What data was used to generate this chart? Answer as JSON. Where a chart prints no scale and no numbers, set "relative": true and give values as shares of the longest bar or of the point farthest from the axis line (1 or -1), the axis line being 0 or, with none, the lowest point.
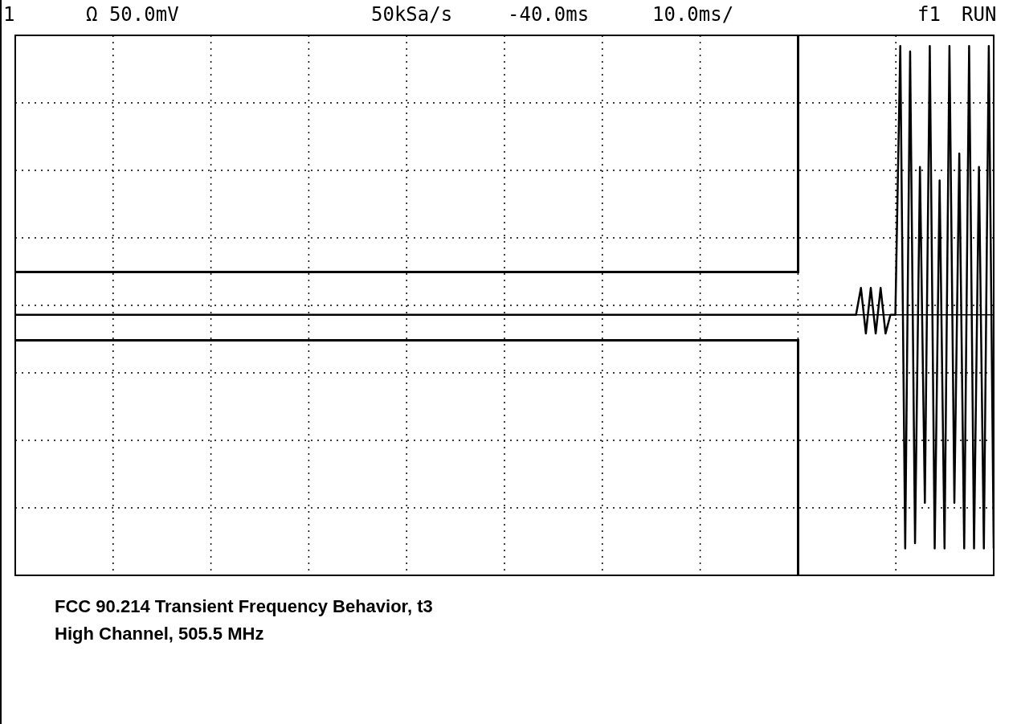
{
  "chart_data": {
    "type": "line",
    "relative": true,
    "annotations": [
      "1",
      "Ω 50.0mV",
      "50kSa/s",
      "-40.0ms",
      "10.0ms/",
      "f1",
      "RUN",
      "FCC 90.214 Transient Frequency Behavior, t3",
      "High Channel, 505.5 MHz"
    ],
    "categories": [
      null,
      null,
      null,
      null,
      null,
      null,
      null,
      null,
      null,
      null,
      null,
      null,
      null,
      null,
      null,
      null,
      null,
      null,
      null,
      null,
      null,
      null,
      null,
      null,
      null,
      null,
      null,
      null,
      null,
      null,
      null,
      null,
      null,
      null,
      null,
      null,
      null,
      null,
      null,
      null,
      null,
      null,
      null,
      null,
      null,
      null,
      null,
      null,
      null,
      null,
      null,
      null,
      null,
      null,
      null,
      null,
      null,
      null,
      null,
      null,
      null,
      null,
      null,
      null,
      null,
      null,
      null,
      null,
      null,
      null,
      null,
      null,
      null,
      null,
      null,
      null,
      null,
      null,
      null,
      null,
      null,
      null,
      null,
      null,
      null,
      null,
      null,
      null,
      null,
      null,
      null,
      null,
      null,
      null,
      null,
      null,
      null,
      null,
      null,
      null,
      null,
      null,
      null,
      null,
      null,
      null,
      null,
      null,
      null,
      null,
      null,
      null,
      null,
      null,
      null,
      null,
      null,
      null,
      null,
      null,
      null,
      null,
      null,
      null,
      null,
      null,
      null,
      null,
      null,
      null,
      null,
      null,
      null,
      null,
      null,
      null,
      null,
      null,
      null,
      null,
      null,
      null,
      null,
      null,
      null,
      null,
      null,
      null,
      null,
      null,
      null,
      null,
      null,
      null,
      null,
      null,
      null,
      null,
      null,
      null,
      null,
      null,
      null,
      null,
      null,
      null,
      null,
      null,
      null,
      null,
      null,
      null,
      null,
      null,
      null,
      null,
      null,
      null,
      null,
      null,
      null,
      null,
      null,
      null,
      null,
      null,
      null,
      null,
      null,
      null,
      null,
      null,
      null,
      null,
      null,
      null,
      null,
      null,
      null,
      null
    ],
    "series": [
      {
        "color": "#000000",
        "values": [
          0,
          0,
          0,
          0,
          0,
          0,
          0,
          0,
          0,
          0,
          0,
          0,
          0,
          0,
          0,
          0,
          0,
          0,
          0,
          0,
          0,
          0,
          0,
          0,
          0,
          0,
          0,
          0,
          0,
          0,
          0,
          0,
          0,
          0,
          0,
          0,
          0,
          0,
          0,
          0,
          0,
          0,
          0,
          0,
          0,
          0,
          0,
          0,
          0,
          0,
          0,
          0,
          0,
          0,
          0,
          0,
          0,
          0,
          0,
          0,
          0,
          0,
          0,
          0,
          0,
          0,
          0,
          0,
          0,
          0,
          0,
          0,
          0,
          0,
          0,
          0,
          0,
          0,
          0,
          0,
          0,
          0,
          0,
          0,
          0,
          0,
          0,
          0,
          0,
          0,
          0,
          0,
          0,
          0,
          0,
          0,
          0,
          0,
          0,
          0,
          0,
          0,
          0,
          0,
          0,
          0,
          0,
          0,
          0,
          0,
          0,
          0,
          0,
          0,
          0,
          0,
          0,
          0,
          0,
          0,
          0,
          0,
          0,
          0,
          0,
          0,
          0,
          0,
          0,
          0,
          0,
          0,
          0,
          0,
          0,
          0,
          0,
          0,
          0,
          0,
          0,
          0,
          0,
          0,
          0,
          0,
          0,
          0,
          0,
          0,
          0,
          0,
          0,
          0,
          0,
          0,
          0,
          0,
          0,
          0,
          0,
          0,
          0,
          0,
          0,
          0,
          0,
          0,
          0,
          0,
          0,
          0,
          0.1,
          -0.07,
          0.1,
          -0.07,
          0.1,
          -0.07,
          0,
          0,
          1,
          -0.87,
          0.98,
          -0.85,
          0.55,
          -0.7,
          1,
          -0.87,
          0.5,
          -0.87,
          1,
          -0.7,
          0.6,
          -0.87,
          1,
          -0.87,
          0.55,
          -0.87,
          1,
          -0.87
        ]
      }
    ]
  }
}
